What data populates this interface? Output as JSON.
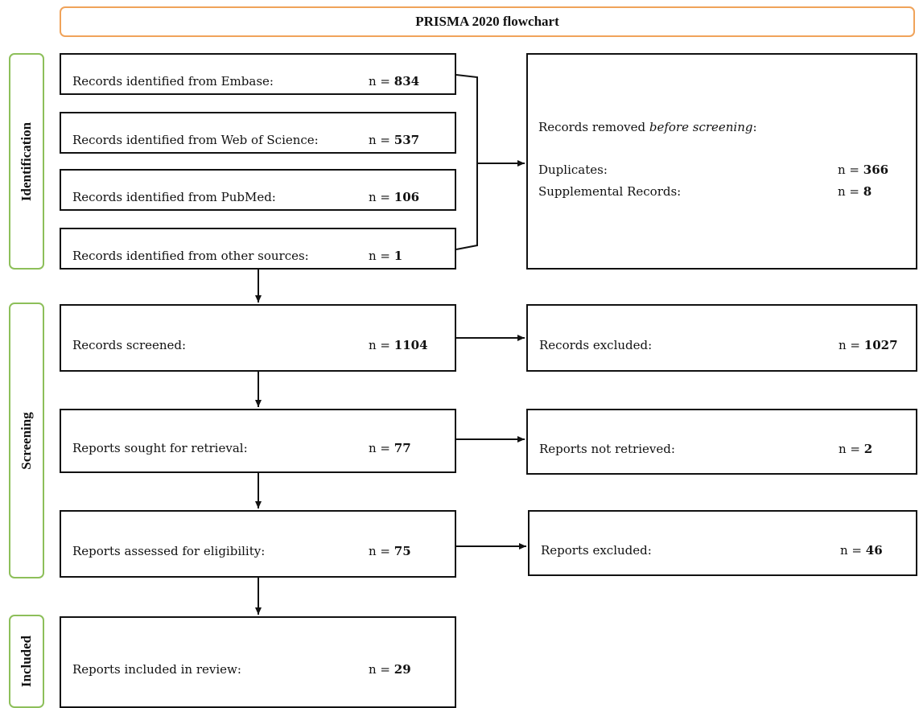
{
  "title": "PRISMA 2020 flowchart",
  "phases": {
    "identification": "Identification",
    "screening": "Screening",
    "included": "Included"
  },
  "identification": {
    "embase": {
      "label": "Records identified from Embase:",
      "n_prefix": "n = ",
      "n": "834"
    },
    "wos": {
      "label": "Records identified from Web of Science:",
      "n_prefix": "n = ",
      "n": "537"
    },
    "pubmed": {
      "label": "Records identified from PubMed:",
      "n_prefix": "n = ",
      "n": "106"
    },
    "other": {
      "label": "Records identified from other sources:",
      "n_prefix": "n = ",
      "n": "1"
    }
  },
  "removed": {
    "heading_prefix": "Records removed ",
    "heading_italic": "before screening",
    "heading_suffix": ":",
    "duplicates": {
      "label": "Duplicates:",
      "n_prefix": "n = ",
      "n": "366"
    },
    "supplemental": {
      "label": "Supplemental Records:",
      "n_prefix": "n = ",
      "n": "8"
    }
  },
  "screening": {
    "screened": {
      "label": "Records screened:",
      "n_prefix": "n = ",
      "n": "1104"
    },
    "excluded": {
      "label": "Records excluded:",
      "n_prefix": "n = ",
      "n": "1027"
    },
    "sought": {
      "label": "Reports sought for retrieval:",
      "n_prefix": "n = ",
      "n": "77"
    },
    "not_retrieved": {
      "label": "Reports not retrieved:",
      "n_prefix": "n = ",
      "n": "2"
    },
    "assessed": {
      "label": "Reports assessed for eligibility:",
      "n_prefix": "n = ",
      "n": "75"
    },
    "reports_excluded": {
      "label": "Reports excluded:",
      "n_prefix": "n = ",
      "n": "46"
    }
  },
  "included": {
    "in_review": {
      "label": "Reports included in review:",
      "n_prefix": "n = ",
      "n": "29"
    }
  },
  "colors": {
    "title_border": "#F0A35A",
    "phase_border": "#8DBF5A",
    "box_border": "#111111"
  }
}
